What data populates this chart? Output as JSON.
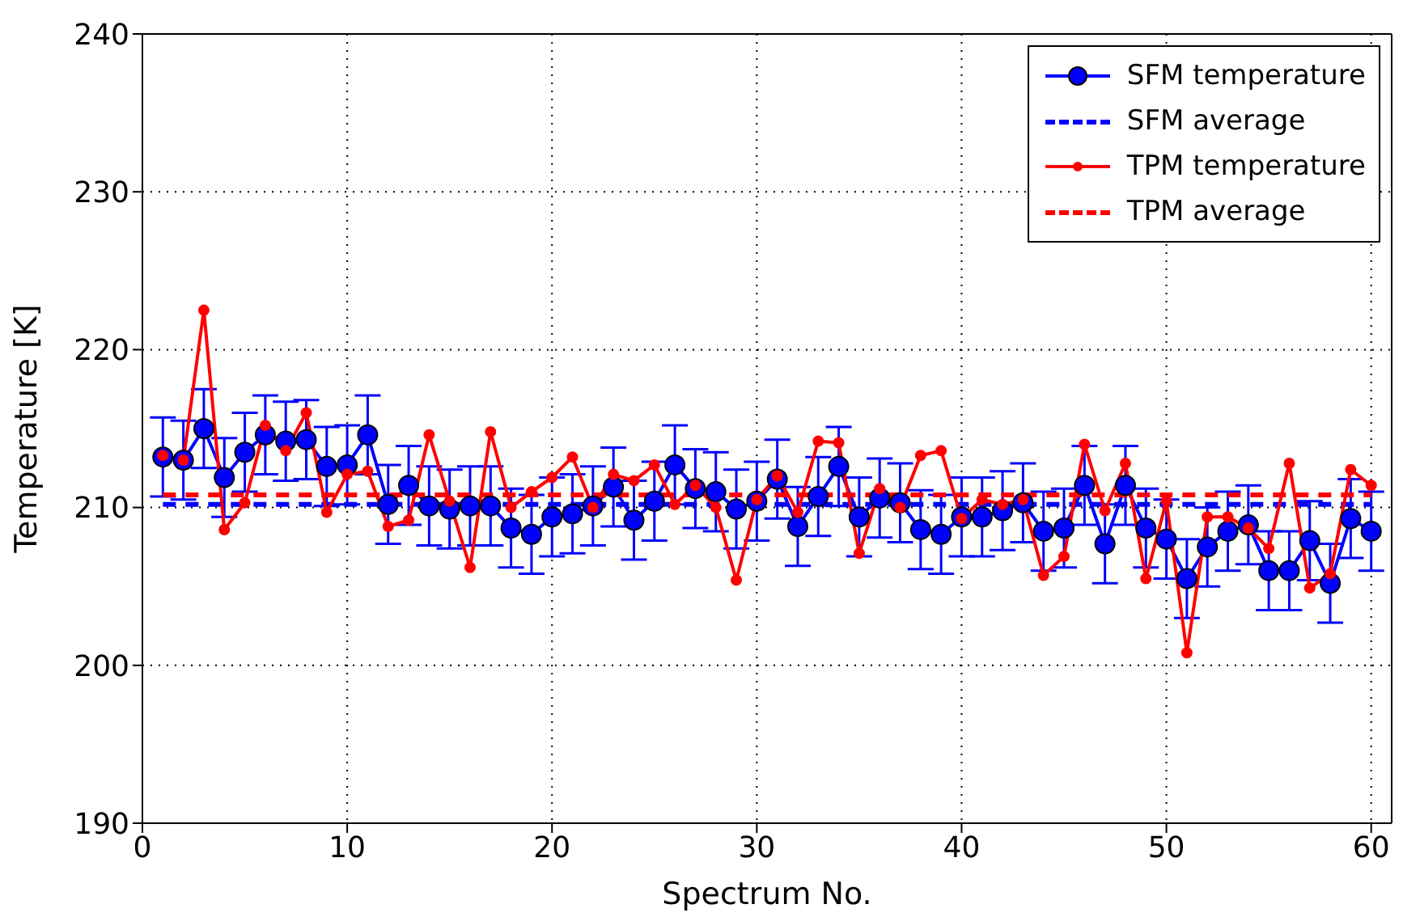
{
  "chart_data": {
    "type": "line",
    "xlabel": "Spectrum No.",
    "ylabel": "Temperature [K]",
    "xlim": [
      0,
      61
    ],
    "ylim": [
      190,
      240
    ],
    "xticks": [
      0,
      10,
      20,
      30,
      40,
      50,
      60
    ],
    "yticks": [
      190,
      200,
      210,
      220,
      230,
      240
    ],
    "grid": true,
    "legend": "top right",
    "series": [
      {
        "name": "SFM temperature",
        "color": "#0000ff",
        "marker": "circle",
        "line_style": "solid",
        "x": [
          1,
          2,
          3,
          4,
          5,
          6,
          7,
          8,
          9,
          10,
          11,
          12,
          13,
          14,
          15,
          16,
          17,
          18,
          19,
          20,
          21,
          22,
          23,
          24,
          25,
          26,
          27,
          28,
          29,
          30,
          31,
          32,
          33,
          34,
          35,
          36,
          37,
          38,
          39,
          40,
          41,
          42,
          43,
          44,
          45,
          46,
          47,
          48,
          49,
          50,
          51,
          52,
          53,
          54,
          55,
          56,
          57,
          58,
          59,
          60
        ],
        "values": [
          213.2,
          213.0,
          215.0,
          211.9,
          213.5,
          214.6,
          214.2,
          214.3,
          212.6,
          212.7,
          214.6,
          210.2,
          211.4,
          210.1,
          209.9,
          210.1,
          210.1,
          208.7,
          208.3,
          209.4,
          209.6,
          210.1,
          211.3,
          209.2,
          210.4,
          212.7,
          211.2,
          211.0,
          209.9,
          210.4,
          211.8,
          208.8,
          210.7,
          212.6,
          209.4,
          210.6,
          210.3,
          208.6,
          208.3,
          209.4,
          209.4,
          209.8,
          210.3,
          208.5,
          208.7,
          211.4,
          207.7,
          211.4,
          208.7,
          208.0,
          205.5,
          207.5,
          208.5,
          208.9,
          206.0,
          206.0,
          207.9,
          205.2,
          209.3,
          208.5
        ],
        "errors": [
          2.5,
          2.5,
          2.5,
          2.5,
          2.5,
          2.5,
          2.5,
          2.5,
          2.5,
          2.5,
          2.5,
          2.5,
          2.5,
          2.5,
          2.5,
          2.5,
          2.5,
          2.5,
          2.5,
          2.5,
          2.5,
          2.5,
          2.5,
          2.5,
          2.5,
          2.5,
          2.5,
          2.5,
          2.5,
          2.5,
          2.5,
          2.5,
          2.5,
          2.5,
          2.5,
          2.5,
          2.5,
          2.5,
          2.5,
          2.5,
          2.5,
          2.5,
          2.5,
          2.5,
          2.5,
          2.5,
          2.5,
          2.5,
          2.5,
          2.5,
          2.5,
          2.5,
          2.5,
          2.5,
          2.5,
          2.5,
          2.5,
          2.5,
          2.5,
          2.5
        ]
      },
      {
        "name": "SFM average",
        "color": "#0000ff",
        "marker": "none",
        "line_style": "dashed",
        "x": [
          1,
          60
        ],
        "values": [
          210.2,
          210.2
        ]
      },
      {
        "name": "TPM temperature",
        "color": "#ff0000",
        "marker": "circle",
        "line_style": "solid",
        "x": [
          1,
          2,
          3,
          4,
          5,
          6,
          7,
          8,
          9,
          10,
          11,
          12,
          13,
          14,
          15,
          16,
          17,
          18,
          19,
          20,
          21,
          22,
          23,
          24,
          25,
          26,
          27,
          28,
          29,
          30,
          31,
          32,
          33,
          34,
          35,
          36,
          37,
          38,
          39,
          40,
          41,
          42,
          43,
          44,
          45,
          46,
          47,
          48,
          49,
          50,
          51,
          52,
          53,
          54,
          55,
          56,
          57,
          58,
          59,
          60
        ],
        "values": [
          213.3,
          213.0,
          222.5,
          208.6,
          210.3,
          215.2,
          213.6,
          216.0,
          209.7,
          212.1,
          212.3,
          208.8,
          209.2,
          214.6,
          210.4,
          206.2,
          214.8,
          210.0,
          211.0,
          211.9,
          213.2,
          210.0,
          212.1,
          211.7,
          212.7,
          210.2,
          211.4,
          210.0,
          205.4,
          210.5,
          212.0,
          209.7,
          214.2,
          214.1,
          207.1,
          211.2,
          210.0,
          213.3,
          213.6,
          209.3,
          210.5,
          210.2,
          210.5,
          205.7,
          206.9,
          214.0,
          209.8,
          212.8,
          205.5,
          210.4,
          200.8,
          209.4,
          209.4,
          208.7,
          207.4,
          212.8,
          204.9,
          205.8,
          212.4,
          211.4
        ]
      },
      {
        "name": "TPM average",
        "color": "#ff0000",
        "marker": "none",
        "line_style": "dashed",
        "x": [
          1,
          60
        ],
        "values": [
          210.8,
          210.8
        ]
      }
    ]
  }
}
